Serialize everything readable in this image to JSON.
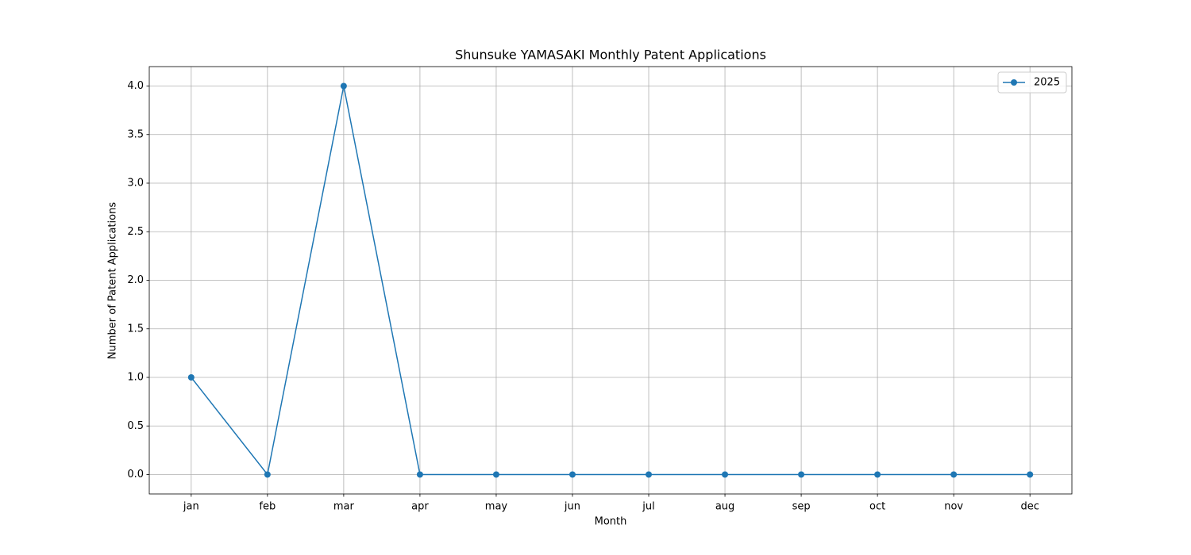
{
  "chart_data": {
    "type": "line",
    "title": "Shunsuke YAMASAKI Monthly Patent Applications",
    "xlabel": "Month",
    "ylabel": "Number of Patent Applications",
    "categories": [
      "jan",
      "feb",
      "mar",
      "apr",
      "may",
      "jun",
      "jul",
      "aug",
      "sep",
      "oct",
      "nov",
      "dec"
    ],
    "series": [
      {
        "name": "2025",
        "color": "#1f77b4",
        "values": [
          1,
          0,
          4,
          0,
          0,
          0,
          0,
          0,
          0,
          0,
          0,
          0
        ]
      }
    ],
    "ylim": [
      -0.2,
      4.2
    ],
    "yticks": [
      {
        "value": 0,
        "label": "0.0"
      },
      0.5,
      {
        "value": 1,
        "label": "1.0"
      },
      1.5,
      {
        "value": 2,
        "label": "2.0"
      },
      2.5,
      {
        "value": 3,
        "label": "3.0"
      },
      3.5,
      {
        "value": 4,
        "label": "4.0"
      }
    ],
    "grid": true,
    "legend": "upper right"
  }
}
